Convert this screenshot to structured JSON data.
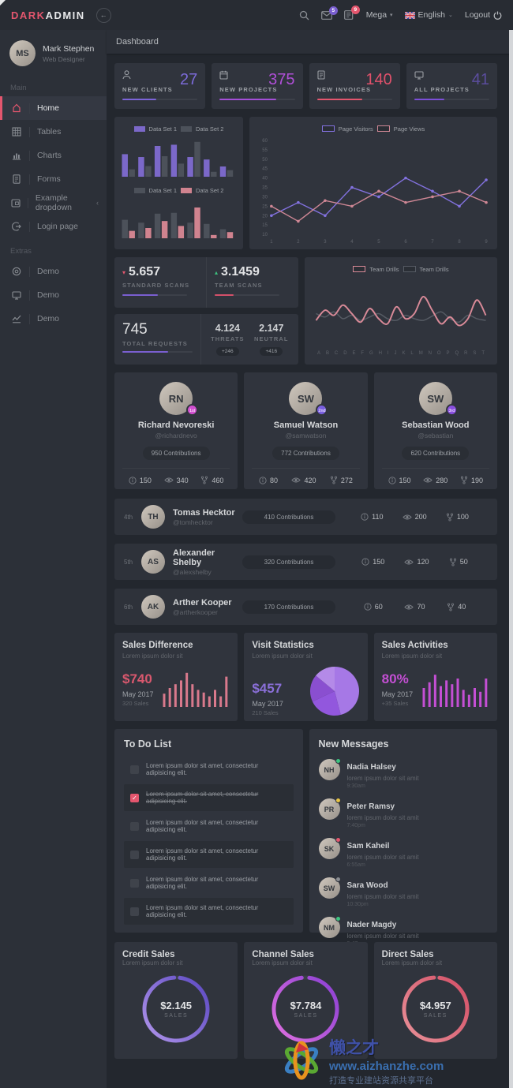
{
  "topbar": {
    "brand_primary": "DARK",
    "brand_secondary": "ADMIN",
    "mega_label": "Mega",
    "language_label": "English",
    "logout_label": "Logout",
    "messages_badge": "5",
    "alerts_badge": "9"
  },
  "breadcrumb": "Dashboard",
  "sidebar": {
    "user_name": "Mark Stephen",
    "user_role": "Web Designer",
    "section_main": "Main",
    "section_extras": "Extras",
    "items": [
      {
        "label": "Home"
      },
      {
        "label": "Tables"
      },
      {
        "label": "Charts"
      },
      {
        "label": "Forms"
      },
      {
        "label": "Example dropdown",
        "chevron": "‹"
      },
      {
        "label": "Login page"
      }
    ],
    "extras": [
      {
        "label": "Demo"
      },
      {
        "label": "Demo"
      },
      {
        "label": "Demo"
      }
    ]
  },
  "stat_cards": [
    {
      "label": "NEW CLIENTS",
      "value": "27",
      "value_color": "#7c6bd9",
      "bar_color": "#7c64d8",
      "bar_width": "45%"
    },
    {
      "label": "NEW PROJECTS",
      "value": "375",
      "value_color": "#b04fd8",
      "bar_color": "#a44fd8",
      "bar_width": "75%"
    },
    {
      "label": "NEW INVOICES",
      "value": "140",
      "value_color": "#e0516b",
      "bar_color": "#e4566e",
      "bar_width": "60%"
    },
    {
      "label": "ALL PROJECTS",
      "value": "41",
      "value_color": "#5b4d9e",
      "bar_color": "#7c4fd8",
      "bar_width": "40%"
    }
  ],
  "scans": {
    "standard_value": "5.657",
    "standard_label": "STANDARD SCANS",
    "standard_caret": "▾",
    "standard_caret_color": "#e4566e",
    "standard_bar_color": "#7a5fd0",
    "standard_bar_width": "55%",
    "team_value": "3.1459",
    "team_label": "TEAM SCANS",
    "team_caret": "▴",
    "team_caret_color": "#3dc480",
    "team_bar_color": "#d4506a",
    "team_bar_width": "30%",
    "total_value": "745",
    "total_label": "TOTAL REQUESTS",
    "total_bar_color": "#7a5fd0",
    "total_bar_width": "65%",
    "threats_value": "4.124",
    "threats_label": "THREATS",
    "threats_badge": "+246",
    "neutral_value": "2.147",
    "neutral_label": "NEUTRAL",
    "neutral_badge": "+416"
  },
  "contributors": [
    {
      "rank": "1st",
      "badge_color": "#d24fd0",
      "name": "Richard Nevoreski",
      "handle": "@richardnevo",
      "contributions": "950 Contributions",
      "stat1": "150",
      "stat2": "340",
      "stat3": "460"
    },
    {
      "rank": "2nd",
      "badge_color": "#7a5fe0",
      "name": "Samuel Watson",
      "handle": "@samwatson",
      "contributions": "772 Contributions",
      "stat1": "80",
      "stat2": "420",
      "stat3": "272"
    },
    {
      "rank": "3rd",
      "badge_color": "#8a4fe0",
      "name": "Sebastian Wood",
      "handle": "@sebastian",
      "contributions": "620 Contributions",
      "stat1": "150",
      "stat2": "280",
      "stat3": "190"
    }
  ],
  "contributor_rows": [
    {
      "rank": "4th",
      "name": "Tomas Hecktor",
      "handle": "@tomhecktor",
      "contributions": "410 Contributions",
      "stat1": "110",
      "stat2": "200",
      "stat3": "100"
    },
    {
      "rank": "5th",
      "name": "Alexander Shelby",
      "handle": "@alexshelby",
      "contributions": "320 Contributions",
      "stat1": "150",
      "stat2": "120",
      "stat3": "50"
    },
    {
      "rank": "6th",
      "name": "Arther Kooper",
      "handle": "@artherkooper",
      "contributions": "170 Contributions",
      "stat1": "60",
      "stat2": "70",
      "stat3": "40"
    }
  ],
  "sales_cards": [
    {
      "title": "Sales Difference",
      "subtitle": "Lorem ipsum dolor sit",
      "value": "$740",
      "value_color": "#d9586e",
      "period": "May 2017",
      "note": "320 Sales"
    },
    {
      "title": "Visit Statistics",
      "subtitle": "Lorem ipsum dolor sit",
      "value": "$457",
      "value_color": "#8a6fd8",
      "period": "May 2017",
      "note": "210 Sales"
    },
    {
      "title": "Sales Activities",
      "subtitle": "Lorem ipsum dolor sit",
      "value": "80%",
      "value_color": "#c44fd4",
      "period": "May 2017",
      "note": "+35 Sales"
    }
  ],
  "todo": {
    "title": "To Do List",
    "items": [
      {
        "text": "Lorem ipsum dolor sit amet, consectetur adipisicing elit.",
        "checked": false
      },
      {
        "text": "Lorem ipsum dolor sit amet, consectetur adipisicing elit.",
        "checked": true
      },
      {
        "text": "Lorem ipsum dolor sit amet, consectetur adipisicing elit.",
        "checked": false
      },
      {
        "text": "Lorem ipsum dolor sit amet, consectetur adipisicing elit.",
        "checked": false
      },
      {
        "text": "Lorem ipsum dolor sit amet, consectetur adipisicing elit.",
        "checked": false
      },
      {
        "text": "Lorem ipsum dolor sit amet, consectetur adipisicing elit.",
        "checked": false
      }
    ]
  },
  "messages": {
    "title": "New Messages",
    "items": [
      {
        "name": "Nadia Halsey",
        "text": "lorem ipsum dolor sit amit",
        "time": "9:30am",
        "status": "#3dc480"
      },
      {
        "name": "Peter Ramsy",
        "text": "lorem ipsum dolor sit amit",
        "time": "7:40pm",
        "status": "#e8c444"
      },
      {
        "name": "Sam Kaheil",
        "text": "lorem ipsum dolor sit amit",
        "time": "6:55am",
        "status": "#e4566e"
      },
      {
        "name": "Sara Wood",
        "text": "lorem ipsum dolor sit amit",
        "time": "10:30pm",
        "status": "#8a8d92"
      },
      {
        "name": "Nader Magdy",
        "text": "lorem ipsum dolor sit amit",
        "time": "9:47pm",
        "status": "#3dc480"
      }
    ]
  },
  "gauges": [
    {
      "title": "Credit Sales",
      "subtitle": "Lorem ipsum dolor sit",
      "value": "$2.145",
      "label": "SALES"
    },
    {
      "title": "Channel Sales",
      "subtitle": "Lorem ipsum dolor sit",
      "value": "$7.784",
      "label": "SALES"
    },
    {
      "title": "Direct Sales",
      "subtitle": "Lorem ipsum dolor sit",
      "value": "$4.957",
      "label": "SALES"
    }
  ],
  "watermark": {
    "logo_text": "懒之才",
    "site": "www.aizhanzhe.com",
    "slogan": "打造专业建站资源共享平台"
  },
  "chart_data": {
    "clients_bars": {
      "type": "bar",
      "series": [
        {
          "name": "Data Set 1",
          "color": "#7b68c9",
          "values": [
            55,
            48,
            75,
            78,
            48,
            42,
            25
          ]
        },
        {
          "name": "Data Set 2",
          "color": "#4c515a",
          "values": [
            18,
            26,
            50,
            32,
            85,
            12,
            16
          ]
        }
      ]
    },
    "revenue_bars": {
      "type": "bar",
      "series": [
        {
          "name": "Data Set 1",
          "color": "#4c515a",
          "values": [
            45,
            38,
            60,
            62,
            38,
            35,
            22
          ]
        },
        {
          "name": "Data Set 2",
          "color": "#d0838f",
          "values": [
            18,
            25,
            42,
            30,
            75,
            8,
            15
          ]
        }
      ]
    },
    "page_visits_line": {
      "type": "line",
      "x": [
        "1",
        "2",
        "3",
        "4",
        "5",
        "6",
        "7",
        "8",
        "9"
      ],
      "ymin": 10,
      "ymax": 60,
      "ystep": 5,
      "series": [
        {
          "name": "Page Visitors",
          "color": "#8372e0",
          "values": [
            20,
            27,
            20,
            35,
            30,
            40,
            33,
            25,
            39
          ]
        },
        {
          "name": "Page Views",
          "color": "#cf8795",
          "values": [
            25,
            17,
            28,
            25,
            33,
            27,
            30,
            33,
            27
          ]
        }
      ]
    },
    "team_drills_line": {
      "type": "smooth",
      "categories": [
        "A",
        "B",
        "C",
        "D",
        "E",
        "F",
        "G",
        "H",
        "I",
        "J",
        "K",
        "L",
        "M",
        "N",
        "O",
        "P",
        "Q",
        "R",
        "S",
        "T"
      ],
      "series": [
        {
          "name": "Team Drills",
          "color": "#d98a98",
          "values": [
            28,
            40,
            34,
            46,
            36,
            26,
            42,
            30,
            24,
            44,
            30,
            36,
            56,
            40,
            24,
            32,
            22,
            30,
            52,
            34
          ]
        },
        {
          "name": "Team Drills",
          "color": "#565b64",
          "values": [
            36,
            32,
            38,
            30,
            34,
            28,
            32,
            36,
            30,
            28,
            34,
            30,
            28,
            33,
            38,
            30,
            26,
            34,
            30,
            28
          ]
        }
      ]
    },
    "sales_difference_spark": {
      "type": "sparkbar",
      "color": "#d9798c",
      "values": [
        35,
        50,
        60,
        70,
        90,
        60,
        45,
        38,
        28,
        45,
        28,
        80
      ]
    },
    "visit_statistics_pie": {
      "type": "pie",
      "colors": [
        "#a678e6",
        "#9257dd",
        "#8a4fd0",
        "#b48ae8"
      ],
      "values": [
        46,
        22,
        18,
        14
      ]
    },
    "sales_activities_spark": {
      "type": "sparkbar",
      "color": "#c44fd4",
      "values": [
        50,
        65,
        85,
        55,
        70,
        60,
        75,
        45,
        32,
        50,
        40,
        75
      ]
    },
    "gauge_rings": [
      {
        "percent": 97,
        "from": "#b094ea",
        "to": "#5b48c2"
      },
      {
        "percent": 96,
        "from": "#e070e0",
        "to": "#8a3fd4"
      },
      {
        "percent": 97,
        "from": "#e89098",
        "to": "#d44f66"
      }
    ]
  }
}
